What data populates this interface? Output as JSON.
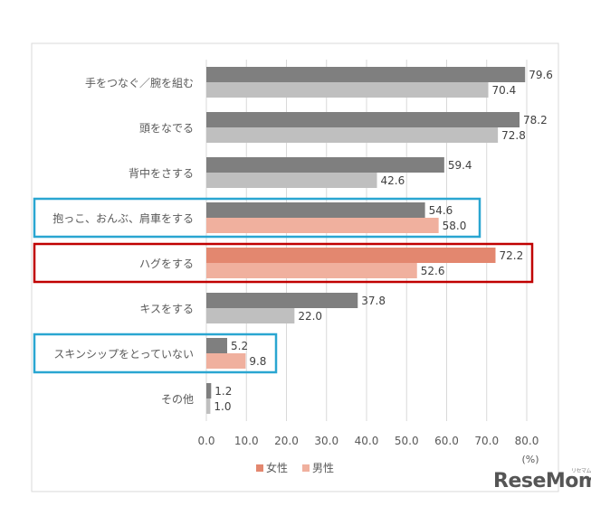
{
  "chart_data": {
    "type": "bar",
    "orientation": "horizontal",
    "categories": [
      "手をつなぐ／腕を組む",
      "頭をなでる",
      "背中をさする",
      "抱っこ、おんぶ、肩車をする",
      "ハグをする",
      "キスをする",
      "スキンシップをとっていない",
      "その他"
    ],
    "series": [
      {
        "name": "女性",
        "values": [
          79.6,
          78.2,
          59.4,
          54.6,
          72.2,
          37.8,
          5.2,
          1.2
        ]
      },
      {
        "name": "男性",
        "values": [
          70.4,
          72.8,
          42.6,
          58.0,
          52.6,
          22.0,
          9.8,
          1.0
        ]
      }
    ],
    "value_labels": [
      [
        "79.6",
        "78.2",
        "59.4",
        "54.6",
        "72.2",
        "37.8",
        "5.2",
        "1.2"
      ],
      [
        "70.4",
        "72.8",
        "42.6",
        "58.0",
        "52.6",
        "22.0",
        "9.8",
        "1.0"
      ]
    ],
    "xlim": [
      0,
      80
    ],
    "xticks": [
      "0.0",
      "10.0",
      "20.0",
      "30.0",
      "40.0",
      "50.0",
      "60.0",
      "70.0",
      "80.0"
    ],
    "xunit": "(%)",
    "grid": "vertical",
    "legend_position": "bottom",
    "colors": {
      "female_default": "#7f7f7f",
      "male_default": "#bfbfbf",
      "female_highlight": "#e3876f",
      "male_highlight": "#f0b09e",
      "highlight_box_blue": "#2aa6d1",
      "highlight_box_red": "#c00000",
      "gridline": "#d9d9d9",
      "label_text": "#595959"
    },
    "highlight_colored_categories": [
      3,
      4,
      6
    ],
    "highlight_boxes": [
      {
        "category": 3,
        "color": "blue"
      },
      {
        "category": 4,
        "color": "red"
      },
      {
        "category": 6,
        "color": "blue"
      }
    ]
  },
  "watermark": {
    "text": "ReseMom",
    "small": "リセマム"
  }
}
